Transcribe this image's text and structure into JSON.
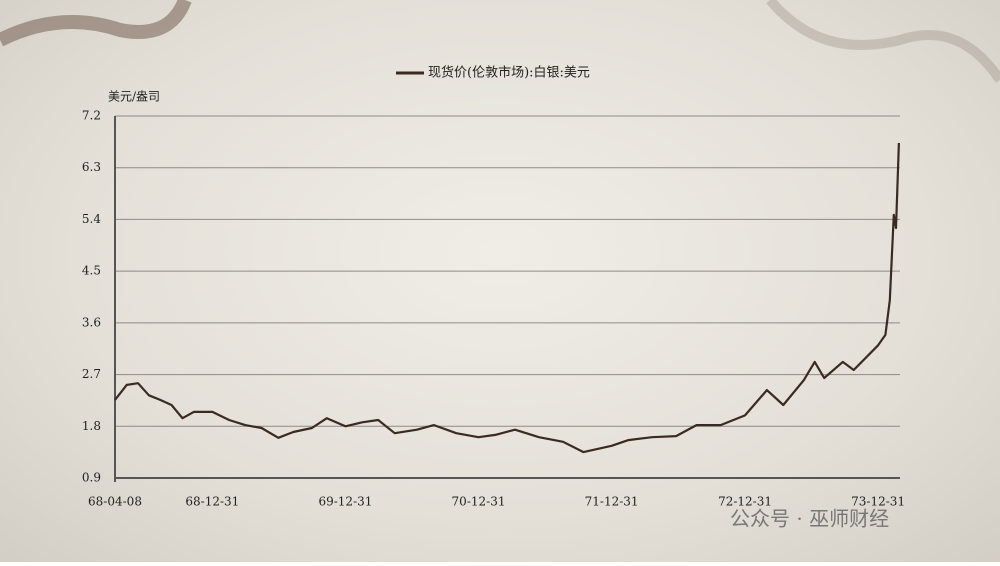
{
  "chart_data": {
    "type": "line",
    "legend": "现货价(伦敦市场):白银:美元",
    "y_label": "美元/盎司",
    "watermark": "公众号 · 巫师财经",
    "x": [
      "68-04-08",
      "68-05-10",
      "68-06-10",
      "68-07-10",
      "68-08-10",
      "68-09-10",
      "68-10-10",
      "68-11-10",
      "68-12-31",
      "69-02-15",
      "69-03-31",
      "69-05-15",
      "69-06-30",
      "69-08-10",
      "69-09-30",
      "69-11-10",
      "69-12-31",
      "70-02-15",
      "70-03-31",
      "70-05-15",
      "70-07-15",
      "70-08-31",
      "70-10-31",
      "70-12-31",
      "71-02-15",
      "71-04-10",
      "71-06-15",
      "71-08-20",
      "71-10-15",
      "71-12-31",
      "72-02-15",
      "72-04-20",
      "72-06-25",
      "72-08-20",
      "72-10-25",
      "72-12-31",
      "73-03-01",
      "73-04-15",
      "73-06-10",
      "73-07-10",
      "73-08-05",
      "73-09-25",
      "73-10-25",
      "73-12-31",
      "74-01-20",
      "74-02-01",
      "74-02-12",
      "74-02-18",
      "74-02-26"
    ],
    "series": [
      {
        "name": "现货价(伦敦市场):白银:美元",
        "color": "#3b2a22",
        "values": [
          2.26,
          2.52,
          2.55,
          2.34,
          2.26,
          2.17,
          1.94,
          2.05,
          2.05,
          1.91,
          1.82,
          1.77,
          1.6,
          1.7,
          1.77,
          1.94,
          1.8,
          1.87,
          1.91,
          1.68,
          1.74,
          1.82,
          1.68,
          1.61,
          1.65,
          1.74,
          1.61,
          1.53,
          1.35,
          1.46,
          1.56,
          1.61,
          1.63,
          1.82,
          1.82,
          1.99,
          2.43,
          2.17,
          2.6,
          2.92,
          2.64,
          2.92,
          2.78,
          3.21,
          3.39,
          3.99,
          5.48,
          5.25,
          6.73
        ]
      }
    ],
    "xlim": [
      "68-04-08",
      "74-03-01"
    ],
    "xticks": [
      "68-04-08",
      "68-12-31",
      "69-12-31",
      "70-12-31",
      "71-12-31",
      "72-12-31",
      "73-12-31"
    ],
    "ylim": [
      0.9,
      7.2
    ],
    "yticks": [
      0.9,
      1.8,
      2.7,
      3.6,
      4.5,
      5.4,
      6.3,
      7.2
    ],
    "grid": true
  }
}
